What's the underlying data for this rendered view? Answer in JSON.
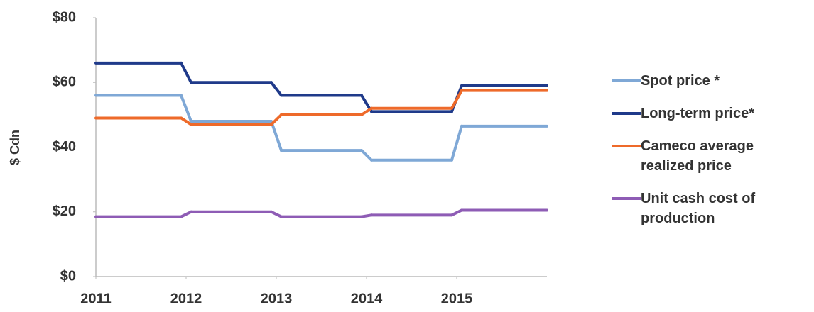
{
  "chart_data": {
    "type": "line",
    "step": true,
    "y_label": "$ Cdn",
    "x": [
      2011,
      2012,
      2013,
      2014,
      2015
    ],
    "xlim": [
      2011,
      2016
    ],
    "xticks": [
      2011,
      2012,
      2013,
      2014,
      2015
    ],
    "ylim": [
      0,
      80
    ],
    "yticks": [
      {
        "value": 0,
        "label": "$0"
      },
      {
        "value": 20,
        "label": "$20"
      },
      {
        "value": 40,
        "label": "$40"
      },
      {
        "value": 60,
        "label": "$60"
      },
      {
        "value": 80,
        "label": "$80"
      }
    ],
    "series": [
      {
        "name": "Spot price *",
        "color": "#7fa8d6",
        "values": [
          56,
          48,
          39,
          36,
          46.5
        ]
      },
      {
        "name": "Long-term price*",
        "color": "#1f3a8a",
        "values": [
          66,
          60,
          56,
          51,
          59
        ]
      },
      {
        "name": "Cameco average realized price",
        "color": "#ee6a2a",
        "values": [
          49,
          47,
          50,
          52,
          57.5
        ]
      },
      {
        "name": "Unit cash cost of production",
        "color": "#8e5cb5",
        "values": [
          18.5,
          20,
          18.5,
          19,
          20.5
        ]
      }
    ],
    "legend": "right"
  }
}
